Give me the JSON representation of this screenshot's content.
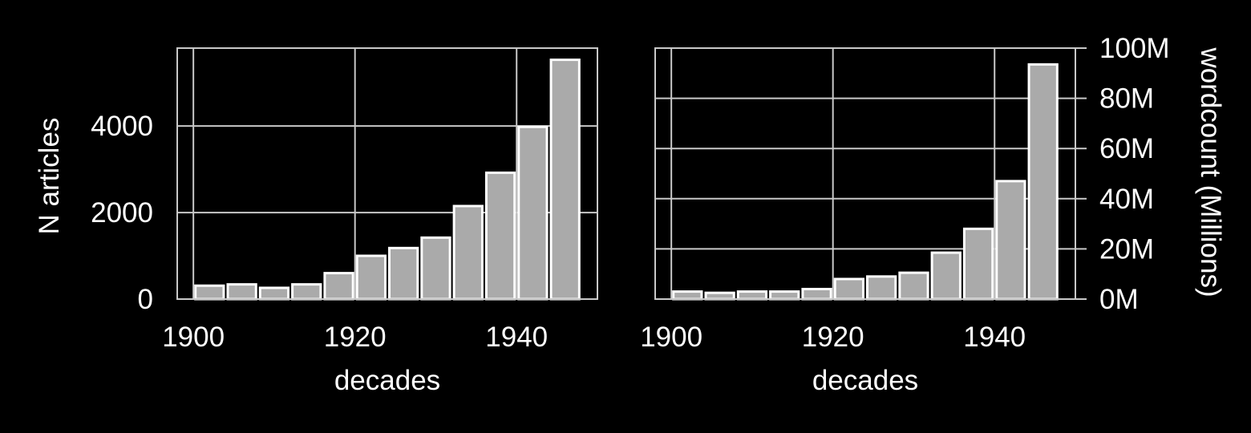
{
  "colors": {
    "background": "#000000",
    "bar_fill": "#aaaaaa",
    "bar_edge": "#ffffff",
    "grid": "#c8c8c8",
    "text": "#ffffff"
  },
  "chart_data": [
    {
      "type": "bar",
      "xlabel": "decades",
      "ylabel": "N articles",
      "y_axis_side": "left",
      "xlim": [
        1898,
        1950
      ],
      "ylim": [
        0,
        5800
      ],
      "xticks": [
        1900,
        1920,
        1940
      ],
      "xtick_labels": [
        "1900",
        "1920",
        "1940"
      ],
      "yticks": [
        0,
        2000,
        4000
      ],
      "ytick_labels": [
        "0",
        "2000",
        "4000"
      ],
      "grid": true,
      "bar_width": 3.5,
      "x": [
        1902,
        1906,
        1910,
        1914,
        1918,
        1922,
        1926,
        1930,
        1934,
        1938,
        1942,
        1946
      ],
      "values": [
        310,
        340,
        260,
        340,
        600,
        1000,
        1180,
        1420,
        2150,
        2920,
        3980,
        5530
      ]
    },
    {
      "type": "bar",
      "xlabel": "decades",
      "ylabel": "wordcount (Millions)",
      "y_axis_side": "right",
      "xlim": [
        1898,
        1950
      ],
      "ylim": [
        0,
        100
      ],
      "xticks": [
        1900,
        1920,
        1940
      ],
      "xtick_labels": [
        "1900",
        "1920",
        "1940"
      ],
      "yticks": [
        0,
        20,
        40,
        60,
        80,
        100
      ],
      "ytick_labels": [
        "0M",
        "20M",
        "40M",
        "60M",
        "80M",
        "100M"
      ],
      "grid": true,
      "bar_width": 3.5,
      "x": [
        1902,
        1906,
        1910,
        1914,
        1918,
        1922,
        1926,
        1930,
        1934,
        1938,
        1942,
        1946
      ],
      "values": [
        3,
        2.5,
        3,
        3,
        4,
        8,
        9,
        10.5,
        18.5,
        28,
        47,
        93.5
      ]
    }
  ]
}
